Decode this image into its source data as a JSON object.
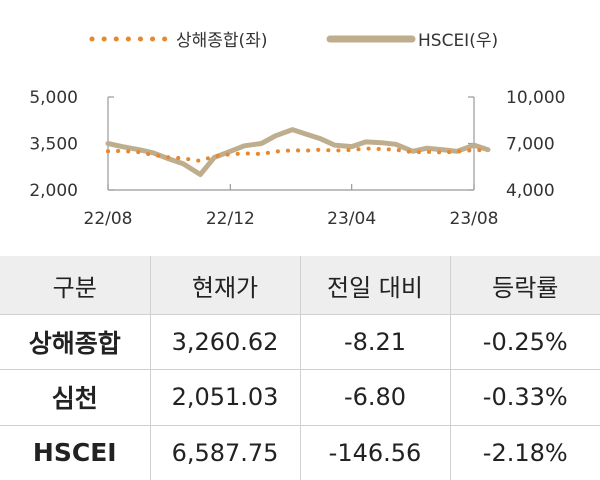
{
  "chart_data": {
    "type": "line",
    "legend": {
      "placement": "top-center"
    },
    "x_ticks": [
      "22/08",
      "22/12",
      "23/04",
      "23/08"
    ],
    "x_range": [
      "2022-08",
      "2023-08"
    ],
    "y_left": {
      "ticks": [
        "2,000",
        "3,500",
        "5,000"
      ],
      "range": [
        2000,
        5000
      ]
    },
    "y_right": {
      "ticks": [
        "4,000",
        "7,000",
        "10,000"
      ],
      "range": [
        4000,
        10000
      ]
    },
    "grid": false,
    "series": [
      {
        "name": "상해종합(좌)",
        "axis": "left",
        "style": "dotted",
        "color": "#E8872E",
        "points": [
          [
            "2022-08-01",
            3250
          ],
          [
            "2022-08-15",
            3260
          ],
          [
            "2022-09-01",
            3220
          ],
          [
            "2022-09-15",
            3130
          ],
          [
            "2022-10-01",
            3050
          ],
          [
            "2022-10-15",
            3020
          ],
          [
            "2022-11-01",
            2940
          ],
          [
            "2022-11-15",
            3090
          ],
          [
            "2022-12-01",
            3150
          ],
          [
            "2022-12-15",
            3180
          ],
          [
            "2023-01-01",
            3160
          ],
          [
            "2023-01-15",
            3240
          ],
          [
            "2023-02-01",
            3280
          ],
          [
            "2023-02-15",
            3270
          ],
          [
            "2023-03-01",
            3300
          ],
          [
            "2023-03-15",
            3270
          ],
          [
            "2023-04-01",
            3290
          ],
          [
            "2023-04-15",
            3340
          ],
          [
            "2023-05-01",
            3320
          ],
          [
            "2023-05-15",
            3300
          ],
          [
            "2023-06-01",
            3220
          ],
          [
            "2023-06-15",
            3230
          ],
          [
            "2023-07-01",
            3210
          ],
          [
            "2023-07-15",
            3240
          ],
          [
            "2023-08-01",
            3290
          ],
          [
            "2023-08-15",
            3280
          ]
        ]
      },
      {
        "name": "HSCEI(우)",
        "axis": "right",
        "style": "solid",
        "color": "#BFAE8E",
        "points": [
          [
            "2022-08-01",
            7000
          ],
          [
            "2022-08-15",
            6800
          ],
          [
            "2022-09-01",
            6600
          ],
          [
            "2022-09-15",
            6400
          ],
          [
            "2022-10-01",
            6000
          ],
          [
            "2022-10-15",
            5700
          ],
          [
            "2022-11-01",
            5000
          ],
          [
            "2022-11-15",
            6100
          ],
          [
            "2022-12-01",
            6500
          ],
          [
            "2022-12-15",
            6850
          ],
          [
            "2023-01-01",
            7000
          ],
          [
            "2023-01-15",
            7500
          ],
          [
            "2023-02-01",
            7900
          ],
          [
            "2023-02-15",
            7600
          ],
          [
            "2023-03-01",
            7300
          ],
          [
            "2023-03-15",
            6900
          ],
          [
            "2023-04-01",
            6800
          ],
          [
            "2023-04-15",
            7100
          ],
          [
            "2023-05-01",
            7050
          ],
          [
            "2023-05-15",
            6950
          ],
          [
            "2023-06-01",
            6500
          ],
          [
            "2023-06-15",
            6700
          ],
          [
            "2023-07-01",
            6600
          ],
          [
            "2023-07-15",
            6500
          ],
          [
            "2023-08-01",
            6900
          ],
          [
            "2023-08-15",
            6600
          ]
        ]
      }
    ]
  },
  "table": {
    "headers": [
      "구분",
      "현재가",
      "전일 대비",
      "등락률"
    ],
    "rows": [
      [
        "상해종합",
        "3,260.62",
        "-8.21",
        "-0.25%"
      ],
      [
        "심천",
        "2,051.03",
        "-6.80",
        "-0.33%"
      ],
      [
        "HSCEI",
        "6,587.75",
        "-146.56",
        "-2.18%"
      ]
    ]
  }
}
